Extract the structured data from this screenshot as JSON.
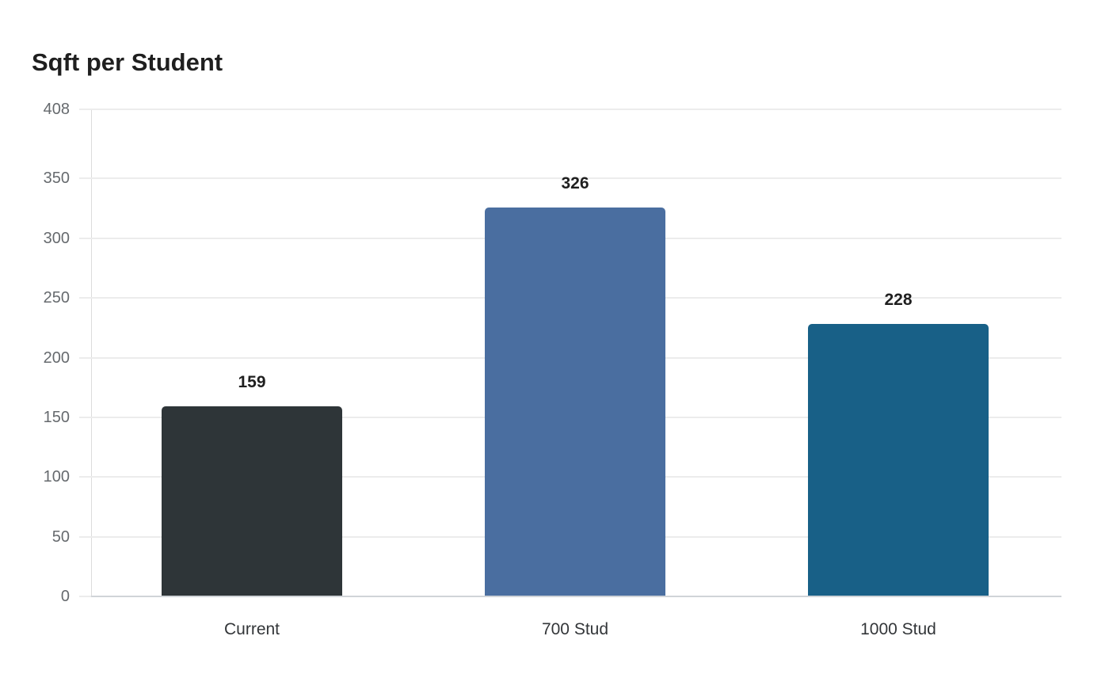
{
  "chart_data": {
    "type": "bar",
    "title": "Sqft per Student",
    "xlabel": "",
    "ylabel": "",
    "categories": [
      "Current",
      "700 Stud",
      "1000 Stud"
    ],
    "values": [
      159,
      326,
      228
    ],
    "data_labels": [
      "159",
      "326",
      "228"
    ],
    "colors": [
      "#2e3538",
      "#4a6ea0",
      "#186087"
    ],
    "ylim": [
      0,
      408
    ],
    "yticks": [
      "0",
      "50",
      "100",
      "150",
      "200",
      "250",
      "300",
      "350",
      "408"
    ],
    "grid": true,
    "legend": null
  }
}
